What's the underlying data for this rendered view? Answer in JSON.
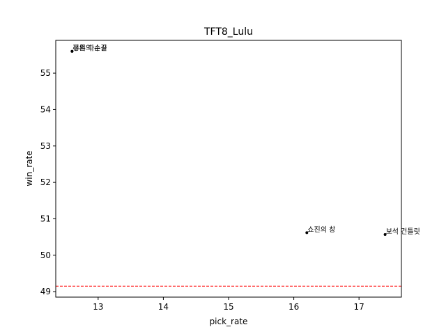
{
  "chart_data": {
    "type": "scatter",
    "title": "TFT8_Lulu",
    "xlabel": "pick_rate",
    "ylabel": "win_rate",
    "xlim": [
      12.35,
      17.65
    ],
    "ylim": [
      48.85,
      55.9
    ],
    "xticks": [
      13,
      14,
      15,
      16,
      17
    ],
    "yticks": [
      49,
      50,
      51,
      52,
      53,
      54,
      55
    ],
    "grid": false,
    "legend": "none",
    "points": [
      {
        "x": 12.6,
        "y": 55.6,
        "label": "푸른 파수꾼"
      },
      {
        "x": 12.6,
        "y": 55.6,
        "label": "정의의 손길"
      },
      {
        "x": 16.2,
        "y": 50.62,
        "label": "쇼진의 창"
      },
      {
        "x": 17.4,
        "y": 50.57,
        "label": "보석 건틀릿"
      }
    ],
    "reference_line": {
      "y": 49.15,
      "style": "dashed",
      "color": "#ff0000"
    },
    "marker_color": "#000000"
  }
}
